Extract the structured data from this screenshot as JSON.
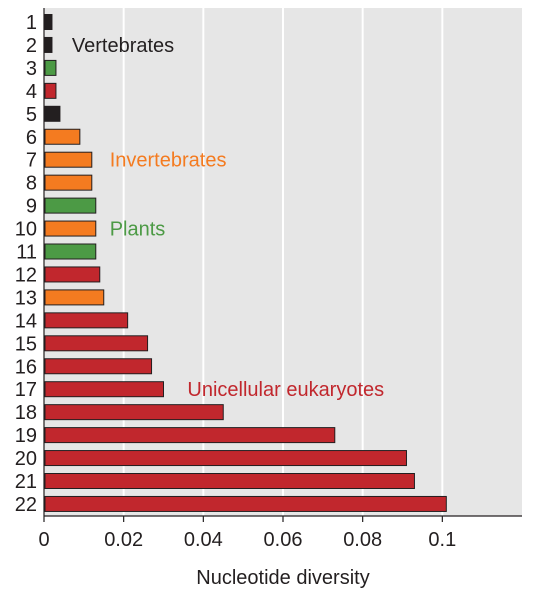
{
  "chart_data": {
    "type": "bar",
    "orientation": "horizontal",
    "categories": [
      "1",
      "2",
      "3",
      "4",
      "5",
      "6",
      "7",
      "8",
      "9",
      "10",
      "11",
      "12",
      "13",
      "14",
      "15",
      "16",
      "17",
      "18",
      "19",
      "20",
      "21",
      "22"
    ],
    "values": [
      0.002,
      0.002,
      0.003,
      0.003,
      0.004,
      0.009,
      0.012,
      0.012,
      0.013,
      0.013,
      0.013,
      0.014,
      0.015,
      0.021,
      0.026,
      0.027,
      0.03,
      0.045,
      0.073,
      0.091,
      0.093,
      0.101
    ],
    "groups": [
      "Vertebrates",
      "Vertebrates",
      "Plants",
      "Unicellular eukaryotes",
      "Vertebrates",
      "Invertebrates",
      "Invertebrates",
      "Invertebrates",
      "Plants",
      "Invertebrates",
      "Plants",
      "Unicellular eukaryotes",
      "Invertebrates",
      "Unicellular eukaryotes",
      "Unicellular eukaryotes",
      "Unicellular eukaryotes",
      "Unicellular eukaryotes",
      "Unicellular eukaryotes",
      "Unicellular eukaryotes",
      "Unicellular eukaryotes",
      "Unicellular eukaryotes",
      "Unicellular eukaryotes"
    ],
    "group_colors": {
      "Vertebrates": "#231f20",
      "Invertebrates": "#f47b20",
      "Plants": "#4c9a45",
      "Unicellular eukaryotes": "#c1272d"
    },
    "annotations": [
      {
        "text": "Vertebrates",
        "group": "Vertebrates",
        "near_category": "2",
        "at_value": 0.007
      },
      {
        "text": "Invertebrates",
        "group": "Invertebrates",
        "near_category": "7",
        "at_value": 0.0165
      },
      {
        "text": "Plants",
        "group": "Plants",
        "near_category": "10",
        "at_value": 0.0165
      },
      {
        "text": "Unicellular eukaryotes",
        "group": "Unicellular eukaryotes",
        "near_category": "17",
        "at_value": 0.036
      }
    ],
    "xlabel": "Nucleotide diversity",
    "ylabel": "",
    "xlim": [
      0,
      0.12
    ],
    "xticks": [
      0,
      0.02,
      0.04,
      0.06,
      0.08,
      0.1
    ],
    "xtick_labels": [
      "0",
      "0.02",
      "0.04",
      "0.06",
      "0.08",
      "0.1"
    ],
    "grid": true,
    "background": "#e6e6e6",
    "gridline_color": "#ffffff"
  }
}
